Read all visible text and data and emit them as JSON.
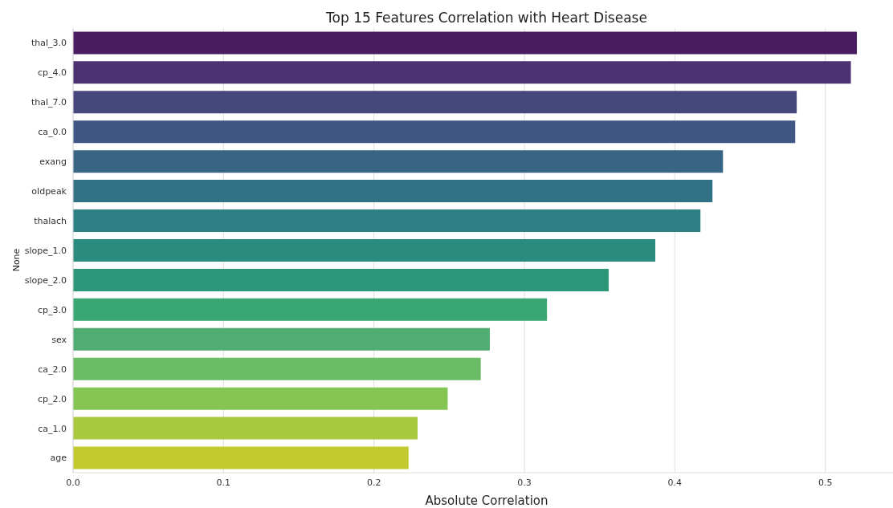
{
  "chart_data": {
    "type": "bar",
    "orientation": "horizontal",
    "title": "Top 15 Features Correlation with Heart Disease",
    "xlabel": "Absolute Correlation",
    "ylabel": "None",
    "categories": [
      "thal_3.0",
      "cp_4.0",
      "thal_7.0",
      "ca_0.0",
      "exang",
      "oldpeak",
      "thalach",
      "slope_1.0",
      "slope_2.0",
      "cp_3.0",
      "sex",
      "ca_2.0",
      "cp_2.0",
      "ca_1.0",
      "age"
    ],
    "values": [
      0.521,
      0.517,
      0.481,
      0.48,
      0.432,
      0.425,
      0.417,
      0.387,
      0.356,
      0.315,
      0.277,
      0.271,
      0.249,
      0.229,
      0.223
    ],
    "colors": [
      "#4a1d62",
      "#4a3273",
      "#46477d",
      "#3f5782",
      "#396585",
      "#327285",
      "#2d8083",
      "#2a8b7e",
      "#2b9778",
      "#3aa671",
      "#4fad72",
      "#6cbc66",
      "#85c554",
      "#a8c83d",
      "#c2ca2f"
    ],
    "xlim": [
      0,
      0.545
    ],
    "xticks": [
      {
        "value": 0,
        "label": "0.0"
      },
      {
        "value": 0.1,
        "label": "0.1"
      },
      {
        "value": 0.2,
        "label": "0.2"
      },
      {
        "value": 0.3,
        "label": "0.3"
      },
      {
        "value": 0.4,
        "label": "0.4"
      },
      {
        "value": 0.5,
        "label": "0.5"
      }
    ],
    "grid": "x"
  }
}
